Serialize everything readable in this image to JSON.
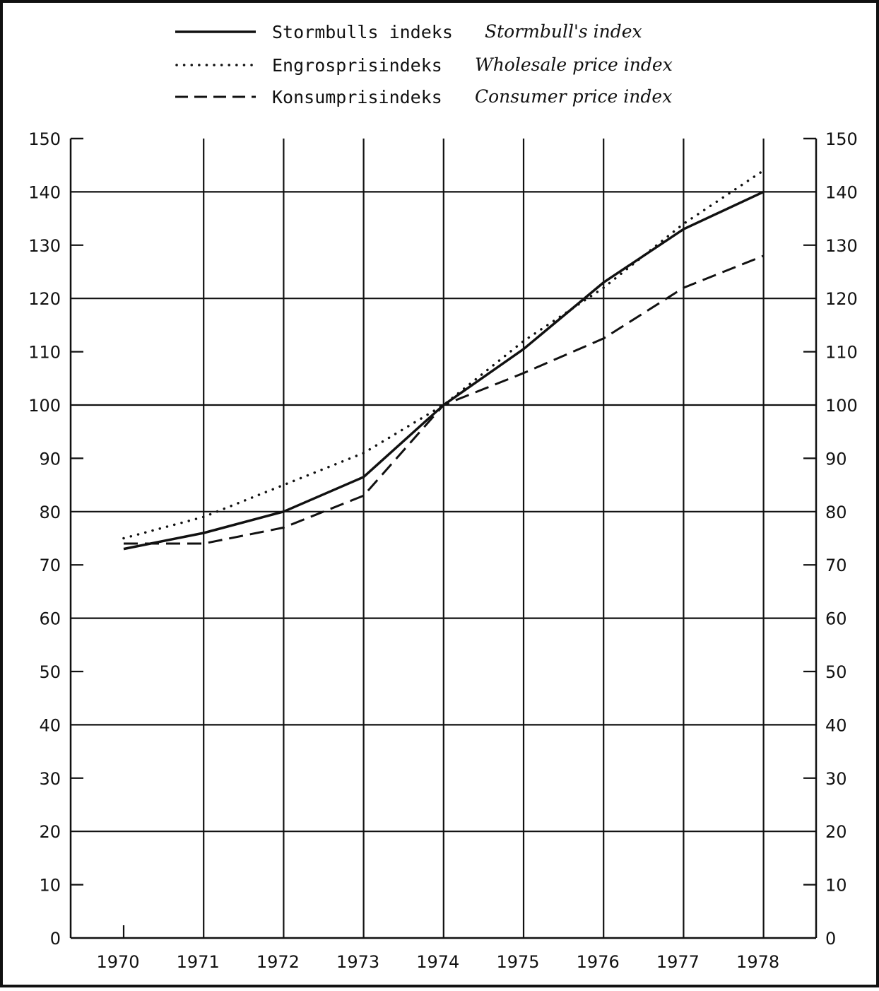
{
  "chart_data": {
    "type": "line",
    "title": "",
    "xlabel": "",
    "ylabel": "",
    "x": [
      "1970",
      "1971",
      "1972",
      "1973",
      "1974",
      "1975",
      "1976",
      "1977",
      "1978"
    ],
    "ylim": [
      0,
      150
    ],
    "yticks": [
      0,
      10,
      20,
      30,
      40,
      50,
      60,
      70,
      80,
      90,
      100,
      110,
      120,
      130,
      140,
      150
    ],
    "grid": true,
    "legend_position": "top-center",
    "series": [
      {
        "name": "Stormbulls indeks",
        "name_en": "Stormbull's index",
        "style": "solid",
        "values": [
          73,
          76,
          80,
          86.5,
          100,
          110.5,
          123,
          133,
          140
        ]
      },
      {
        "name": "Engrosprisindeks",
        "name_en": "Wholesale price index",
        "style": "dotted",
        "values": [
          75,
          79,
          85,
          91,
          100,
          112,
          122,
          134,
          144
        ]
      },
      {
        "name": "Konsumprisindeks",
        "name_en": "Consumer price index",
        "style": "dashed",
        "values": [
          74,
          74,
          77,
          83,
          100,
          106,
          112.5,
          122,
          128
        ]
      }
    ],
    "colors": {
      "ink": "#111111",
      "background": "#ffffff"
    }
  }
}
